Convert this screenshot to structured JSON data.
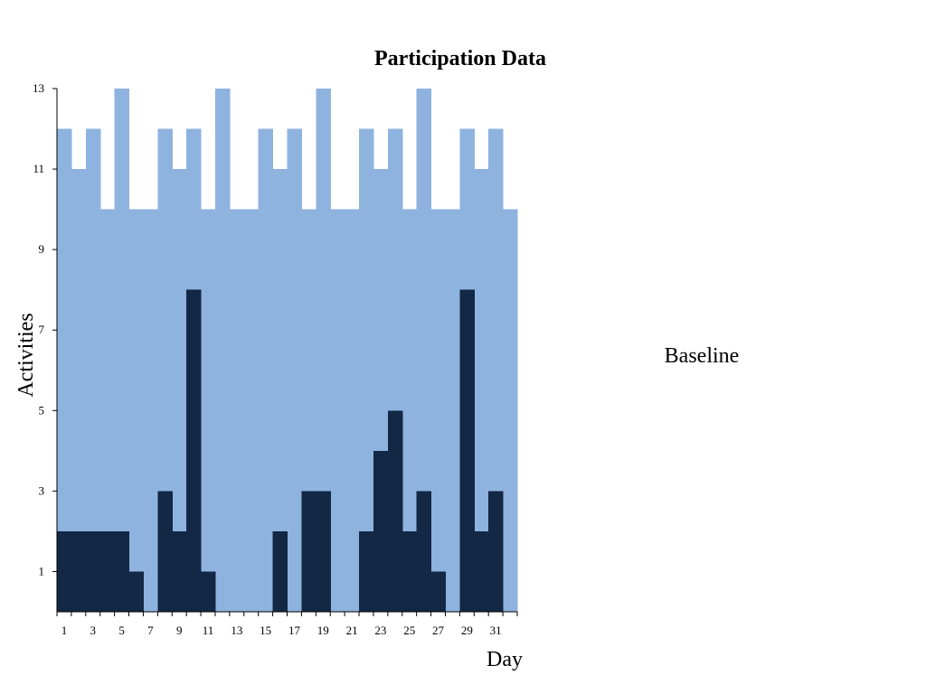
{
  "chart_data": {
    "type": "bar",
    "title": "Participation Data",
    "xlabel": "Day",
    "ylabel": "Activities",
    "annotation": "Baseline",
    "x": [
      1,
      2,
      3,
      4,
      5,
      6,
      7,
      8,
      9,
      10,
      11,
      12,
      13,
      14,
      15,
      16,
      17,
      18,
      19,
      20,
      21,
      22,
      23,
      24,
      25,
      26,
      27,
      28,
      29,
      30,
      31,
      32
    ],
    "x_ticks": [
      "1",
      "3",
      "5",
      "7",
      "9",
      "11",
      "13",
      "15",
      "17",
      "19",
      "21",
      "23",
      "25",
      "27",
      "29",
      "31"
    ],
    "y_ticks": [
      "1",
      "3",
      "5",
      "7",
      "9",
      "11",
      "13"
    ],
    "xlim": [
      0.5,
      32.5
    ],
    "ylim": [
      0,
      13
    ],
    "grid": false,
    "series": [
      {
        "values": [
          12,
          11,
          12,
          10,
          13,
          10,
          10,
          12,
          11,
          12,
          10,
          13,
          10,
          10,
          12,
          11,
          12,
          10,
          13,
          10,
          10,
          12,
          11,
          12,
          10,
          13,
          10,
          10,
          12,
          11,
          12,
          10
        ],
        "color": "#8fb3df"
      },
      {
        "values": [
          2,
          2,
          2,
          2,
          2,
          1,
          0,
          3,
          2,
          8,
          1,
          0,
          0,
          0,
          0,
          2,
          0,
          3,
          3,
          0,
          0,
          2,
          4,
          5,
          2,
          3,
          1,
          0,
          8,
          2,
          3,
          0
        ],
        "color": "#132845"
      }
    ]
  }
}
